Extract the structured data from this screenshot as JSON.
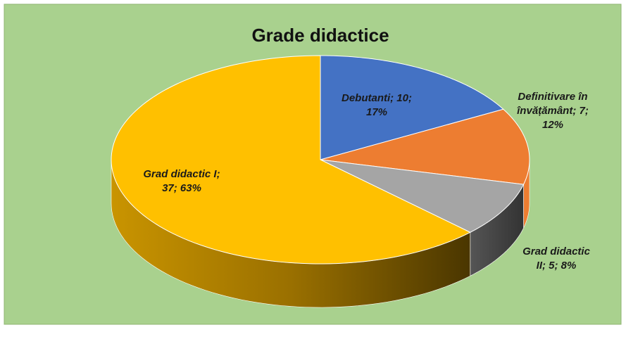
{
  "chart_data": {
    "type": "pie3d",
    "title": "Grade didactice",
    "values": [
      10,
      7,
      5,
      37
    ],
    "value_labels": [
      "Debutanti; 10; 17%",
      "Definitivare în învățământ; 7; 12%",
      "Grad didactic II; 5; 8%",
      "Grad didactic I; 37; 63%"
    ],
    "colors": [
      "#4472c4",
      "#ed7d31",
      "#a5a5a5",
      "#ffc000"
    ]
  }
}
